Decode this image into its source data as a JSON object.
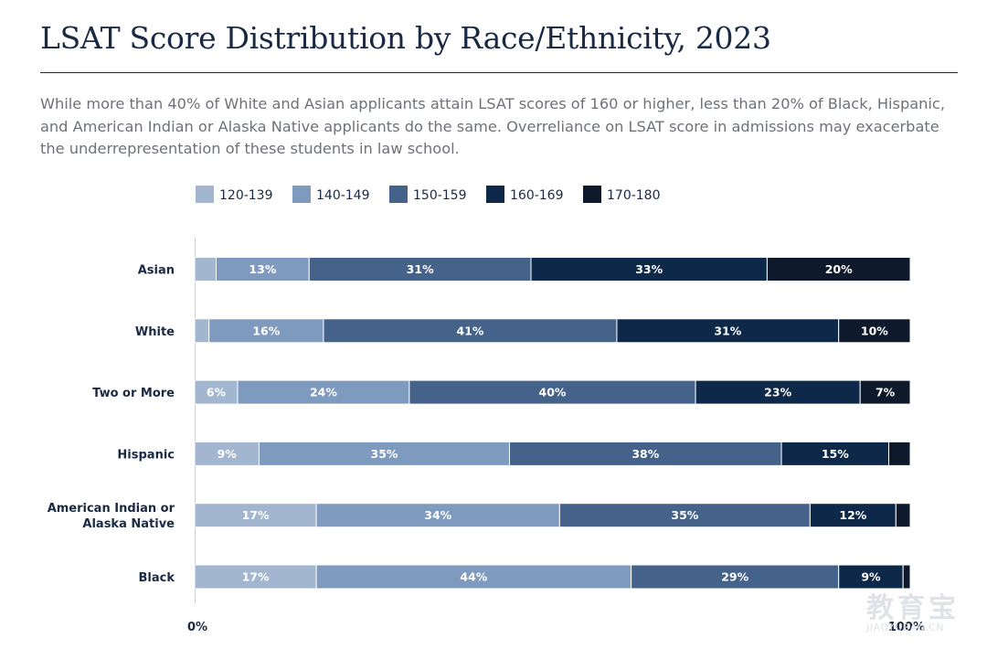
{
  "title": "LSAT Score Distribution by Race/Ethnicity, 2023",
  "subtitle": "While more than 40% of White and Asian applicants attain LSAT scores of 160 or higher, less than 20% of Black, Hispanic, and American Indian or Alaska Native applicants do the same. Overreliance on LSAT score in admissions may exacerbate the underrepresentation of these students in law school.",
  "colors": {
    "120-139": "#a3b6d0",
    "140-149": "#7f9abf",
    "150-159": "#44628a",
    "160-169": "#0d2848",
    "170-180": "#0e1a2c"
  },
  "watermark": {
    "big": "教育宝",
    "small": "JIAOYUBAO.CN"
  },
  "chart_data": {
    "type": "bar",
    "orientation": "horizontal",
    "stacked": true,
    "legend_position": "top",
    "grid": false,
    "xlim": [
      0,
      100
    ],
    "x_tick_labels": [
      "0%",
      "100%"
    ],
    "categories": [
      "Asian",
      "White",
      "Two or More",
      "Hispanic",
      "American Indian or Alaska Native",
      "Black"
    ],
    "category_label_lines": [
      [
        "Asian"
      ],
      [
        "White"
      ],
      [
        "Two or More"
      ],
      [
        "Hispanic"
      ],
      [
        "American Indian or",
        "Alaska Native"
      ],
      [
        "Black"
      ]
    ],
    "series": [
      {
        "name": "120-139",
        "values": [
          3,
          2,
          6,
          9,
          17,
          17
        ],
        "labels": [
          "",
          "",
          "6%",
          "9%",
          "17%",
          "17%"
        ]
      },
      {
        "name": "140-149",
        "values": [
          13,
          16,
          24,
          35,
          34,
          44
        ],
        "labels": [
          "13%",
          "16%",
          "24%",
          "35%",
          "34%",
          "44%"
        ]
      },
      {
        "name": "150-159",
        "values": [
          31,
          41,
          40,
          38,
          35,
          29
        ],
        "labels": [
          "31%",
          "41%",
          "40%",
          "38%",
          "35%",
          "29%"
        ]
      },
      {
        "name": "160-169",
        "values": [
          33,
          31,
          23,
          15,
          12,
          9
        ],
        "labels": [
          "33%",
          "31%",
          "23%",
          "15%",
          "12%",
          "9%"
        ]
      },
      {
        "name": "170-180",
        "values": [
          20,
          10,
          7,
          3,
          2,
          1
        ],
        "labels": [
          "20%",
          "10%",
          "7%",
          "",
          "",
          ""
        ]
      }
    ]
  }
}
